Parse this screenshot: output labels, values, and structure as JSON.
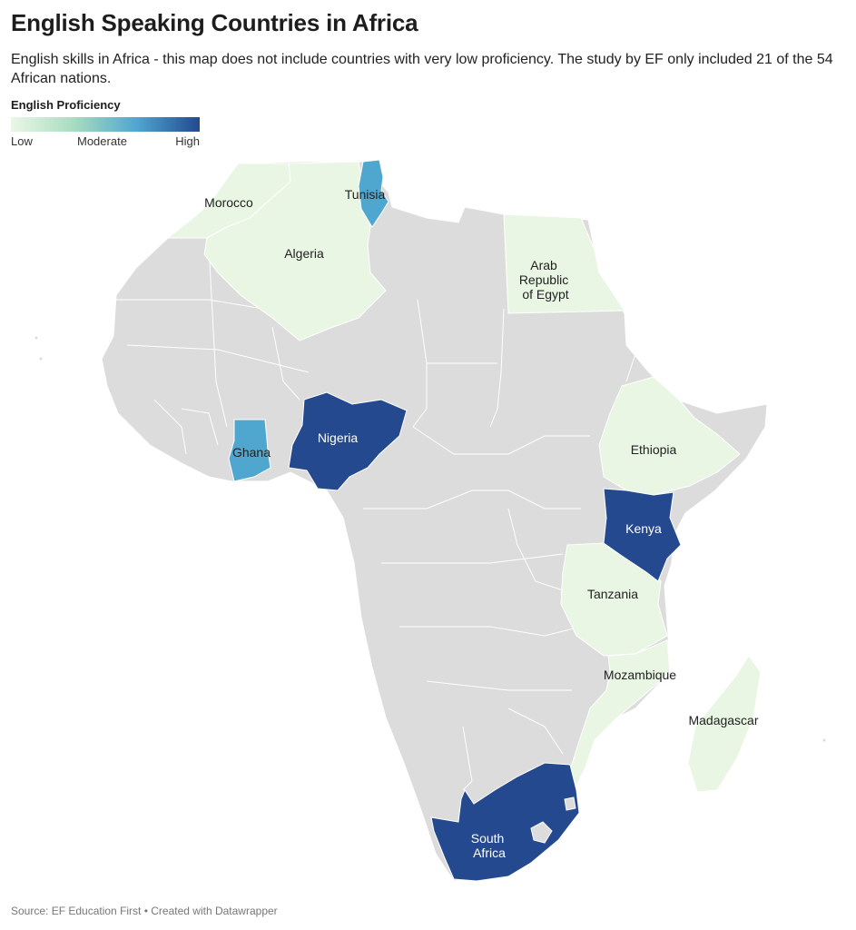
{
  "title": "English Speaking Countries in Africa",
  "subtitle": "English skills in Africa - this map does not include countries with very low proficiency. The study by EF only included 21 of the 54 African nations.",
  "legend": {
    "title": "English Proficiency",
    "low": "Low",
    "moderate": "Moderate",
    "high": "High"
  },
  "colors": {
    "land": "#dcdcdc",
    "low": "#eaf6e4",
    "moderate": "#4fa6cf",
    "high": "#24498f",
    "border": "#ffffff"
  },
  "countries": [
    {
      "name": "Morocco",
      "label": "Morocco",
      "level": "low"
    },
    {
      "name": "Algeria",
      "label": "Algeria",
      "level": "low"
    },
    {
      "name": "Tunisia",
      "label": "Tunisia",
      "level": "moderate"
    },
    {
      "name": "Egypt",
      "label": "Arab Republic of Egypt",
      "label_lines": [
        "Arab",
        "Republic",
        "of Egypt"
      ],
      "level": "low"
    },
    {
      "name": "Ethiopia",
      "label": "Ethiopia",
      "level": "low"
    },
    {
      "name": "Nigeria",
      "label": "Nigeria",
      "level": "high"
    },
    {
      "name": "Ghana",
      "label": "Ghana",
      "level": "moderate"
    },
    {
      "name": "Kenya",
      "label": "Kenya",
      "level": "high"
    },
    {
      "name": "Tanzania",
      "label": "Tanzania",
      "level": "low"
    },
    {
      "name": "Mozambique",
      "label": "Mozambique",
      "level": "low"
    },
    {
      "name": "Madagascar",
      "label": "Madagascar",
      "level": "low"
    },
    {
      "name": "South Africa",
      "label": "South Africa",
      "label_lines": [
        "South",
        "Africa"
      ],
      "level": "high"
    }
  ],
  "source": "Source: EF Education First • Created with Datawrapper"
}
